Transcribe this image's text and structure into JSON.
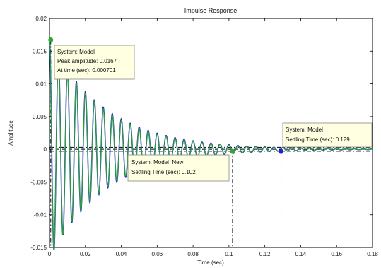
{
  "chart_data": {
    "type": "line",
    "title": "Impulse Response",
    "xlabel": "Time (sec)",
    "ylabel": "Amplitude",
    "xlim": [
      0,
      0.18
    ],
    "ylim": [
      -0.015,
      0.02
    ],
    "xticks": [
      "0",
      "0.02",
      "0.04",
      "0.06",
      "0.08",
      "0.1",
      "0.12",
      "0.14",
      "0.16",
      "0.18"
    ],
    "yticks": [
      "-0.015",
      "-0.01",
      "-0.005",
      "0",
      "0.005",
      "0.01",
      "0.015",
      "0.02"
    ],
    "grid": false,
    "colors": {
      "model": "#1f1fd6",
      "model_new": "#2ea82e",
      "reference": "#000000"
    },
    "series": [
      {
        "name": "Model",
        "peak_amplitude": 0.0167,
        "settling_time": 0.129,
        "decay": 32,
        "freq_hz": 200
      },
      {
        "name": "Model_New",
        "peak_amplitude": 0.0167,
        "settling_time": 0.102,
        "decay": 33,
        "freq_hz": 200
      }
    ],
    "datatips": [
      {
        "line1": "System: Model",
        "line2": "Peak amplitude: 0.0167",
        "line3": "At time (sec): 0.000701",
        "x": 0.000701,
        "y": 0.0167
      },
      {
        "line1": "System: Model_New",
        "line2": "Settling Time (sec): 0.102",
        "x": 0.102,
        "y": 0
      },
      {
        "line1": "System: Model",
        "line2": "Settling Time (sec): 0.129",
        "x": 0.129,
        "y": 0
      }
    ]
  }
}
